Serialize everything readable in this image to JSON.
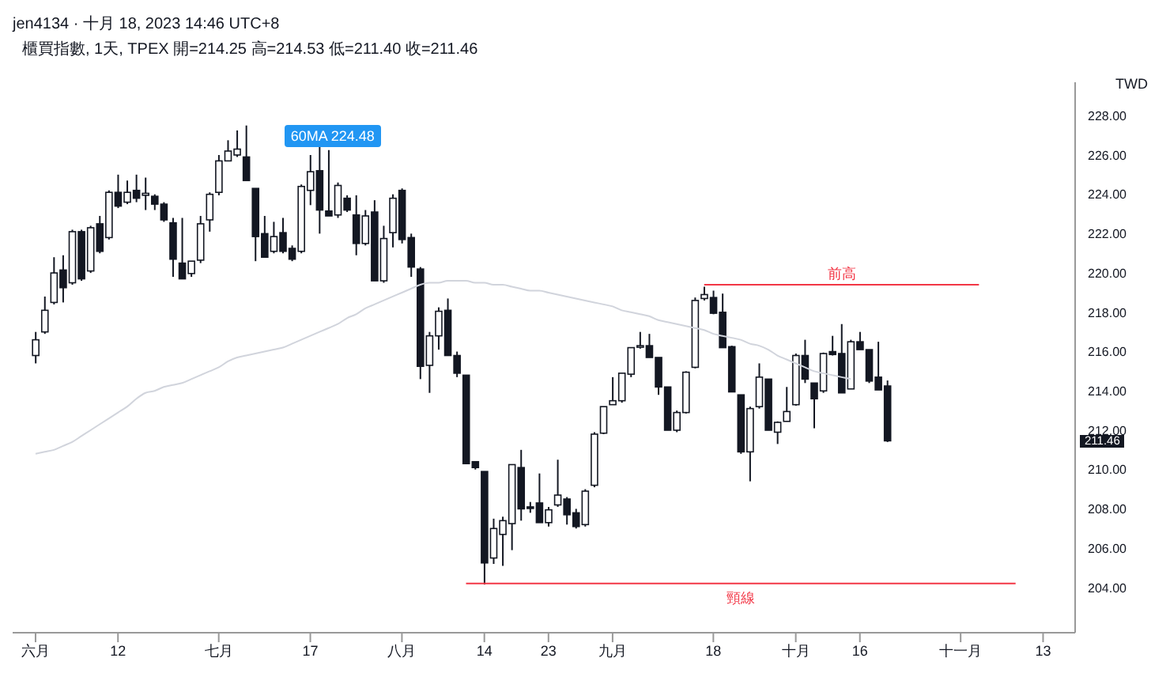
{
  "chart_data": {
    "type": "candlestick",
    "title": "jen4134 · 十月 18, 2023 14:46 UTC+8",
    "subtitle": "櫃買指數, 1天, TPEX  開=214.25  高=214.53  低=211.40  收=211.46",
    "ylabel": "TWD",
    "color": "#131722",
    "categories": [
      "六月",
      null,
      null,
      null,
      null,
      null,
      null,
      null,
      null,
      "12",
      null,
      null,
      null,
      null,
      null,
      null,
      null,
      null,
      null,
      null,
      "七月",
      null,
      null,
      null,
      null,
      null,
      null,
      null,
      null,
      null,
      "17",
      null,
      null,
      null,
      null,
      null,
      null,
      null,
      null,
      null,
      "八月",
      null,
      null,
      null,
      null,
      null,
      null,
      null,
      null,
      "14",
      null,
      null,
      null,
      null,
      null,
      null,
      "23",
      null,
      null,
      null,
      null,
      null,
      null,
      "九月",
      null,
      null,
      null,
      null,
      null,
      null,
      null,
      null,
      null,
      null,
      "18",
      null,
      null,
      null,
      null,
      null,
      null,
      null,
      null,
      "十月",
      null,
      null,
      null,
      null,
      null,
      null,
      "16",
      null,
      null,
      null,
      null,
      null,
      null,
      null,
      null,
      null,
      null,
      "十一月",
      null,
      null,
      null,
      null,
      null,
      null,
      null,
      null,
      "13",
      null,
      null,
      null
    ],
    "ohlc": [
      [
        215.8,
        217.0,
        215.4,
        216.6
      ],
      [
        217.0,
        218.8,
        216.9,
        218.1
      ],
      [
        218.5,
        220.8,
        218.4,
        220.0
      ],
      [
        220.15,
        220.9,
        218.5,
        219.25
      ],
      [
        219.5,
        222.2,
        219.4,
        222.1
      ],
      [
        222.1,
        222.2,
        219.6,
        219.7
      ],
      [
        220.1,
        222.4,
        220.0,
        222.3
      ],
      [
        222.5,
        222.9,
        221.0,
        221.1
      ],
      [
        221.8,
        224.2,
        221.7,
        224.1
      ],
      [
        224.1,
        225.0,
        223.3,
        223.4
      ],
      [
        223.6,
        224.7,
        223.5,
        224.1
      ],
      [
        224.2,
        225.0,
        223.6,
        223.8
      ],
      [
        223.95,
        224.85,
        223.2,
        224.05
      ],
      [
        223.9,
        224.0,
        223.2,
        223.5
      ],
      [
        223.5,
        223.6,
        222.6,
        222.7
      ],
      [
        222.55,
        222.8,
        219.8,
        220.7
      ],
      [
        220.5,
        222.8,
        219.7,
        219.7
      ],
      [
        219.97,
        220.6,
        219.8,
        220.6
      ],
      [
        220.65,
        222.9,
        220.5,
        222.5
      ],
      [
        222.7,
        224.1,
        222.1,
        224.0
      ],
      [
        224.1,
        226.0,
        223.95,
        225.7
      ],
      [
        225.7,
        226.75,
        225.7,
        226.2
      ],
      [
        226.0,
        227.25,
        225.9,
        226.3
      ],
      [
        225.9,
        227.5,
        224.7,
        224.7
      ],
      [
        224.3,
        224.3,
        220.6,
        221.85
      ],
      [
        222.0,
        222.9,
        220.8,
        220.8
      ],
      [
        221.1,
        222.6,
        221.0,
        221.85
      ],
      [
        222.05,
        222.8,
        221.0,
        221.1
      ],
      [
        221.25,
        221.4,
        220.6,
        220.7
      ],
      [
        221.1,
        224.5,
        221.0,
        224.4
      ],
      [
        224.2,
        226.0,
        223.45,
        225.15
      ],
      [
        225.2,
        226.5,
        222.0,
        223.2
      ],
      [
        223.15,
        226.25,
        222.9,
        222.9
      ],
      [
        222.95,
        224.6,
        222.8,
        224.45
      ],
      [
        223.8,
        223.95,
        223.1,
        223.2
      ],
      [
        222.95,
        223.95,
        220.9,
        221.5
      ],
      [
        221.5,
        223.2,
        221.4,
        222.9
      ],
      [
        223.1,
        223.7,
        219.6,
        219.6
      ],
      [
        219.6,
        222.4,
        219.5,
        221.75
      ],
      [
        222.05,
        224.0,
        221.3,
        223.8
      ],
      [
        224.2,
        224.3,
        221.5,
        221.7
      ],
      [
        221.8,
        222.0,
        219.8,
        220.3
      ],
      [
        220.2,
        220.3,
        214.6,
        215.25
      ],
      [
        215.3,
        217.0,
        213.9,
        216.8
      ],
      [
        216.8,
        218.25,
        216.1,
        218.05
      ],
      [
        218.1,
        218.7,
        215.8,
        215.8
      ],
      [
        215.8,
        216.0,
        214.7,
        214.9
      ],
      [
        214.8,
        214.8,
        210.3,
        210.3
      ],
      [
        210.4,
        210.4,
        210.0,
        210.1
      ],
      [
        209.9,
        209.9,
        204.15,
        205.25
      ],
      [
        205.5,
        207.5,
        205.2,
        207.0
      ],
      [
        206.7,
        207.6,
        205.1,
        207.4
      ],
      [
        207.25,
        210.25,
        205.9,
        210.25
      ],
      [
        210.1,
        211.0,
        207.4,
        208.0
      ],
      [
        208.1,
        208.35,
        207.8,
        208.05
      ],
      [
        208.3,
        209.8,
        207.3,
        207.3
      ],
      [
        207.3,
        208.1,
        207.1,
        207.95
      ],
      [
        208.2,
        210.5,
        208.1,
        208.7
      ],
      [
        208.5,
        208.6,
        207.2,
        207.7
      ],
      [
        207.8,
        208.0,
        207.0,
        207.1
      ],
      [
        207.2,
        209.0,
        207.1,
        208.9
      ],
      [
        209.2,
        211.9,
        209.1,
        211.8
      ],
      [
        211.85,
        213.2,
        211.8,
        213.2
      ],
      [
        213.3,
        214.7,
        213.3,
        213.5
      ],
      [
        213.5,
        214.9,
        213.4,
        214.9
      ],
      [
        214.85,
        216.2,
        214.7,
        216.2
      ],
      [
        216.25,
        217.0,
        216.15,
        216.3
      ],
      [
        216.3,
        216.9,
        215.7,
        215.7
      ],
      [
        215.7,
        215.7,
        213.8,
        214.2
      ],
      [
        214.2,
        214.2,
        212.0,
        212.0
      ],
      [
        212.0,
        213.0,
        211.9,
        212.9
      ],
      [
        212.9,
        215.0,
        212.85,
        214.95
      ],
      [
        215.2,
        218.75,
        215.15,
        218.6
      ],
      [
        218.7,
        219.3,
        218.6,
        218.9
      ],
      [
        218.75,
        219.1,
        217.9,
        217.95
      ],
      [
        218.0,
        218.95,
        216.2,
        216.2
      ],
      [
        216.25,
        216.3,
        213.95,
        213.95
      ],
      [
        213.8,
        213.8,
        210.8,
        210.9
      ],
      [
        210.9,
        213.2,
        209.4,
        213.1
      ],
      [
        213.2,
        215.4,
        213.1,
        214.7
      ],
      [
        214.6,
        214.6,
        212.0,
        212.0
      ],
      [
        211.9,
        212.45,
        211.3,
        212.4
      ],
      [
        212.45,
        214.2,
        212.45,
        212.95
      ],
      [
        213.3,
        215.9,
        213.25,
        215.8
      ],
      [
        215.8,
        216.6,
        214.4,
        214.6
      ],
      [
        214.4,
        214.4,
        212.1,
        213.6
      ],
      [
        214.0,
        215.95,
        213.9,
        215.9
      ],
      [
        216.0,
        216.8,
        215.8,
        215.85
      ],
      [
        215.9,
        217.4,
        213.9,
        213.9
      ],
      [
        214.1,
        216.6,
        214.1,
        216.5
      ],
      [
        216.5,
        217.0,
        216.1,
        216.1
      ],
      [
        216.1,
        216.1,
        214.4,
        214.5
      ],
      [
        214.7,
        216.5,
        214.05,
        214.05
      ],
      [
        214.25,
        214.53,
        211.4,
        211.46
      ],
      null,
      null,
      null,
      null,
      null,
      null,
      null,
      null,
      null,
      null,
      null,
      null,
      null,
      null,
      null,
      null,
      null,
      null,
      null,
      null
    ],
    "series": [
      {
        "type": "line",
        "color": "#d1d4dc",
        "values": [
          210.8,
          210.9,
          211.0,
          211.2,
          211.4,
          211.7,
          212.0,
          212.3,
          212.6,
          212.9,
          213.2,
          213.6,
          213.9,
          214.0,
          214.2,
          214.3,
          214.4,
          214.6,
          214.8,
          215.0,
          215.2,
          215.5,
          215.7,
          215.8,
          215.9,
          216.0,
          216.1,
          216.2,
          216.4,
          216.6,
          216.8,
          217.0,
          217.2,
          217.4,
          217.7,
          217.9,
          218.2,
          218.4,
          218.6,
          218.8,
          219.0,
          219.2,
          219.4,
          219.5,
          219.5,
          219.6,
          219.6,
          219.6,
          219.5,
          219.5,
          219.4,
          219.4,
          219.3,
          219.2,
          219.1,
          219.1,
          219.0,
          218.9,
          218.8,
          218.7,
          218.6,
          218.5,
          218.4,
          218.3,
          218.1,
          218.0,
          217.9,
          217.8,
          217.6,
          217.5,
          217.4,
          217.3,
          217.2,
          217.1,
          216.9,
          216.8,
          216.7,
          216.6,
          216.4,
          216.3,
          216.1,
          215.8,
          215.6,
          215.4,
          215.2,
          215.0,
          214.9,
          214.8,
          214.7,
          214.6,
          null,
          null,
          null,
          null,
          null,
          null,
          null,
          null,
          null,
          null,
          null,
          null,
          null,
          null,
          null,
          null,
          null,
          null,
          null,
          null,
          null,
          null,
          null,
          null
        ]
      },
      {
        "type": "line",
        "color": "#f23645",
        "values": [
          null,
          null,
          null,
          null,
          null,
          null,
          null,
          null,
          null,
          null,
          null,
          null,
          null,
          null,
          null,
          null,
          null,
          null,
          null,
          null,
          null,
          null,
          null,
          null,
          null,
          null,
          null,
          null,
          null,
          null,
          null,
          null,
          null,
          null,
          null,
          null,
          null,
          null,
          null,
          null,
          null,
          null,
          null,
          null,
          null,
          null,
          null,
          null,
          null,
          null,
          null,
          null,
          null,
          null,
          null,
          null,
          null,
          null,
          null,
          null,
          null,
          null,
          null,
          null,
          null,
          null,
          null,
          null,
          null,
          null,
          null,
          null,
          null,
          219.4,
          219.4,
          219.4,
          219.4,
          219.4,
          219.4,
          219.4,
          219.4,
          219.4,
          219.4,
          219.4,
          219.4,
          219.4,
          219.4,
          219.4,
          219.4,
          219.4,
          219.4,
          219.4,
          219.4,
          219.4,
          219.4,
          219.4,
          219.4,
          219.4,
          219.4,
          219.4,
          219.4,
          219.4,
          219.4,
          219.4,
          null,
          null,
          null,
          null,
          null,
          null,
          null,
          null,
          null,
          null
        ]
      },
      {
        "type": "line",
        "color": "#f23645",
        "values": [
          null,
          null,
          null,
          null,
          null,
          null,
          null,
          null,
          null,
          null,
          null,
          null,
          null,
          null,
          null,
          null,
          null,
          null,
          null,
          null,
          null,
          null,
          null,
          null,
          null,
          null,
          null,
          null,
          null,
          null,
          null,
          null,
          null,
          null,
          null,
          null,
          null,
          null,
          null,
          null,
          null,
          null,
          null,
          null,
          null,
          null,
          null,
          204.2,
          204.2,
          204.2,
          204.2,
          204.2,
          204.2,
          204.2,
          204.2,
          204.2,
          204.2,
          204.2,
          204.2,
          204.2,
          204.2,
          204.2,
          204.2,
          204.2,
          204.2,
          204.2,
          204.2,
          204.2,
          204.2,
          204.2,
          204.2,
          204.2,
          204.2,
          204.2,
          204.2,
          204.2,
          204.2,
          204.2,
          204.2,
          204.2,
          204.2,
          204.2,
          204.2,
          204.2,
          204.2,
          204.2,
          204.2,
          204.2,
          204.2,
          204.2,
          204.2,
          204.2,
          204.2,
          204.2,
          204.2,
          204.2,
          204.2,
          204.2,
          204.2,
          204.2,
          204.2,
          204.2,
          204.2,
          204.2,
          204.2,
          204.2,
          204.2,
          204.2,
          null,
          null,
          null,
          null,
          null,
          null
        ]
      }
    ],
    "annotations": [
      "60MA 224.48",
      "前高",
      "頸線",
      "211.46"
    ],
    "ylim": [
      201.7,
      229.7
    ],
    "yticks": [
      {
        "value": 204,
        "label": "204.00"
      },
      {
        "value": 206,
        "label": "206.00"
      },
      {
        "value": 208,
        "label": "208.00"
      },
      {
        "value": 210,
        "label": "210.00"
      },
      {
        "value": 212,
        "label": "212.00"
      },
      {
        "value": 214,
        "label": "214.00"
      },
      {
        "value": 216,
        "label": "216.00"
      },
      {
        "value": 218,
        "label": "218.00"
      },
      {
        "value": 220,
        "label": "220.00"
      },
      {
        "value": 222,
        "label": "222.00"
      },
      {
        "value": 224,
        "label": "224.00"
      },
      {
        "value": 226,
        "label": "226.00"
      },
      {
        "value": 228,
        "label": "228.00"
      }
    ],
    "grid": false
  }
}
